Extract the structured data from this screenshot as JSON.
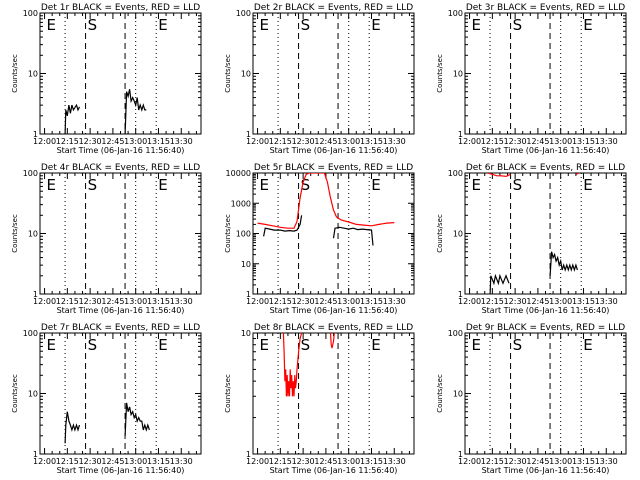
{
  "shared": {
    "xlabel": "Start Time (06-Jan-16 11:56:40)",
    "ylabel": "Counts/sec",
    "x_ticks": [
      "12:00",
      "12:15",
      "12:30",
      "12:45",
      "13:00",
      "13:15",
      "13:30"
    ],
    "colors": {
      "events": "#000000",
      "lld": "#ff0000"
    }
  },
  "chart_data": [
    {
      "type": "line",
      "title": "Det 1r BLACK = Events, RED = LLD",
      "y_scale": "log",
      "ylim": [
        1,
        100
      ],
      "y_ticks": [
        "1",
        "10",
        "100"
      ],
      "x_range_min": [
        0,
        100
      ],
      "markers": [
        {
          "label": "E",
          "x": 0
        },
        {
          "label": "S",
          "x": 27
        },
        {
          "label": "E",
          "x": 73.5
        }
      ],
      "dotted_lines": [
        13.5,
        60
      ],
      "dashed_lines": [
        27,
        53
      ],
      "series": [
        {
          "color": "#000000",
          "values": [
            [
              13.5,
              1
            ],
            [
              14,
              2.5
            ],
            [
              15,
              2
            ],
            [
              16,
              3
            ],
            [
              17,
              2.2
            ],
            [
              18,
              3
            ],
            [
              19,
              2.5
            ],
            [
              21,
              3
            ],
            [
              22,
              2.5
            ],
            [
              23,
              2.8
            ]
          ]
        },
        {
          "color": "#000000",
          "values": [
            [
              53,
              1
            ],
            [
              54,
              5
            ],
            [
              55,
              4.2
            ],
            [
              56,
              5.5
            ],
            [
              57,
              3.5
            ],
            [
              58,
              4
            ],
            [
              59,
              3.5
            ],
            [
              60,
              3
            ],
            [
              61,
              4
            ],
            [
              62,
              2.5
            ],
            [
              63,
              3
            ],
            [
              64,
              2.5
            ],
            [
              65,
              3
            ],
            [
              66,
              2.5
            ],
            [
              67,
              2.5
            ]
          ]
        }
      ]
    },
    {
      "type": "line",
      "title": "Det 2r BLACK = Events, RED = LLD",
      "y_scale": "log",
      "ylim": [
        1,
        100
      ],
      "y_ticks": [
        "1",
        "10",
        "100"
      ],
      "markers": [
        {
          "label": "E",
          "x": 0
        },
        {
          "label": "S",
          "x": 27
        },
        {
          "label": "E",
          "x": 73.5
        }
      ],
      "dotted_lines": [
        13.5,
        60
      ],
      "dashed_lines": [
        27,
        53
      ],
      "series": []
    },
    {
      "type": "line",
      "title": "Det 3r BLACK = Events, RED = LLD",
      "y_scale": "log",
      "ylim": [
        1,
        100
      ],
      "y_ticks": [
        "1",
        "10",
        "100"
      ],
      "markers": [
        {
          "label": "E",
          "x": 0
        },
        {
          "label": "S",
          "x": 27
        },
        {
          "label": "E",
          "x": 73.5
        }
      ],
      "dotted_lines": [
        13.5,
        60
      ],
      "dashed_lines": [
        27,
        53
      ],
      "series": []
    },
    {
      "type": "line",
      "title": "Det 4r BLACK = Events, RED = LLD",
      "y_scale": "log",
      "ylim": [
        1,
        100
      ],
      "y_ticks": [
        "1",
        "10",
        "100"
      ],
      "markers": [
        {
          "label": "E",
          "x": 0
        },
        {
          "label": "S",
          "x": 27
        },
        {
          "label": "E",
          "x": 73.5
        }
      ],
      "dotted_lines": [
        13.5,
        60
      ],
      "dashed_lines": [
        27,
        53
      ],
      "series": []
    },
    {
      "type": "line",
      "title": "Det 5r BLACK = Events, RED = LLD",
      "y_scale": "log",
      "ylim": [
        1,
        10000
      ],
      "y_ticks": [
        "1",
        "10",
        "100",
        "1000",
        "10000"
      ],
      "markers": [
        {
          "label": "E",
          "x": 0
        },
        {
          "label": "S",
          "x": 27
        },
        {
          "label": "E",
          "x": 73.5
        }
      ],
      "dotted_lines": [
        13.5,
        60
      ],
      "dashed_lines": [
        27,
        53
      ],
      "series": [
        {
          "color": "#ff0000",
          "values": [
            [
              0,
              220
            ],
            [
              5,
              200
            ],
            [
              10,
              180
            ],
            [
              15,
              160
            ],
            [
              20,
              150
            ],
            [
              24,
              150
            ],
            [
              26,
              250
            ],
            [
              28,
              1500
            ],
            [
              30,
              5000
            ],
            [
              32,
              9000
            ],
            [
              34,
              10000
            ],
            [
              44,
              10000
            ],
            [
              46,
              5000
            ],
            [
              48,
              1500
            ],
            [
              50,
              600
            ],
            [
              52,
              350
            ],
            [
              55,
              280
            ],
            [
              60,
              240
            ],
            [
              65,
              200
            ],
            [
              70,
              190
            ],
            [
              75,
              180
            ],
            [
              80,
              200
            ],
            [
              85,
              220
            ],
            [
              90,
              230
            ]
          ]
        },
        {
          "color": "#000000",
          "values": [
            [
              4,
              80
            ],
            [
              5,
              150
            ],
            [
              8,
              140
            ],
            [
              11,
              130
            ],
            [
              13.5,
              130
            ],
            [
              15,
              130
            ],
            [
              18,
              120
            ],
            [
              21,
              125
            ],
            [
              24,
              120
            ],
            [
              26,
              130
            ],
            [
              28,
              200
            ],
            [
              29,
              400
            ]
          ]
        },
        {
          "color": "#000000",
          "values": [
            [
              50,
              70
            ],
            [
              51,
              150
            ],
            [
              54,
              160
            ],
            [
              57,
              150
            ],
            [
              60,
              140
            ],
            [
              63,
              150
            ],
            [
              66,
              135
            ],
            [
              69,
              140
            ],
            [
              72,
              135
            ],
            [
              75,
              130
            ],
            [
              76,
              40
            ]
          ]
        }
      ]
    },
    {
      "type": "line",
      "title": "Det 6r BLACK = Events, RED = LLD",
      "y_scale": "log",
      "ylim": [
        1,
        100
      ],
      "y_ticks": [
        "1",
        "10",
        "100"
      ],
      "markers": [
        {
          "label": "E",
          "x": 0
        },
        {
          "label": "S",
          "x": 27
        },
        {
          "label": "E",
          "x": 73.5
        }
      ],
      "dotted_lines": [
        13.5,
        60
      ],
      "dashed_lines": [
        27,
        53
      ],
      "series": [
        {
          "color": "#ff0000",
          "values": [
            [
              12,
              100
            ],
            [
              15,
              95
            ],
            [
              18,
              90
            ],
            [
              21,
              90
            ],
            [
              24,
              88
            ],
            [
              27,
              95
            ]
          ]
        },
        {
          "color": "#ff0000",
          "values": [
            [
              70,
              95
            ],
            [
              72,
              100
            ]
          ]
        },
        {
          "color": "#000000",
          "values": [
            [
              13.5,
              1
            ],
            [
              14,
              2
            ],
            [
              16,
              1.5
            ],
            [
              17,
              2
            ],
            [
              19,
              1.5
            ],
            [
              20,
              2
            ],
            [
              22,
              1.5
            ],
            [
              24,
              2
            ],
            [
              26,
              1.5
            ]
          ]
        },
        {
          "color": "#000000",
          "values": [
            [
              53,
              2
            ],
            [
              54,
              5
            ],
            [
              55,
              4
            ],
            [
              56,
              4.5
            ],
            [
              57,
              3.5
            ],
            [
              58,
              4
            ],
            [
              59,
              3
            ],
            [
              60,
              3.5
            ],
            [
              61,
              2.5
            ],
            [
              62,
              3
            ],
            [
              63,
              2.5
            ],
            [
              64,
              3
            ],
            [
              65,
              2.5
            ],
            [
              66,
              3
            ],
            [
              67,
              2.5
            ],
            [
              68,
              3
            ],
            [
              69,
              2.5
            ],
            [
              70,
              3
            ],
            [
              71,
              2.5
            ]
          ]
        }
      ]
    },
    {
      "type": "line",
      "title": "Det 7r BLACK = Events, RED = LLD",
      "y_scale": "log",
      "ylim": [
        1,
        100
      ],
      "y_ticks": [
        "1",
        "10",
        "100"
      ],
      "markers": [
        {
          "label": "E",
          "x": 0
        },
        {
          "label": "S",
          "x": 27
        },
        {
          "label": "E",
          "x": 73.5
        }
      ],
      "dotted_lines": [
        13.5,
        60
      ],
      "dashed_lines": [
        27,
        53
      ],
      "series": [
        {
          "color": "#000000",
          "values": [
            [
              13.5,
              1.5
            ],
            [
              14,
              3
            ],
            [
              15,
              5
            ],
            [
              16,
              3.5
            ],
            [
              17,
              3
            ],
            [
              18,
              2.5
            ],
            [
              19,
              3
            ],
            [
              20,
              2.5
            ],
            [
              21,
              3
            ],
            [
              22,
              2.5
            ],
            [
              23,
              3
            ]
          ]
        },
        {
          "color": "#000000",
          "values": [
            [
              53,
              2
            ],
            [
              54,
              7
            ],
            [
              55,
              5
            ],
            [
              56,
              6
            ],
            [
              57,
              4.5
            ],
            [
              58,
              5
            ],
            [
              59,
              4
            ],
            [
              60,
              4.5
            ],
            [
              61,
              3.5
            ],
            [
              62,
              4
            ],
            [
              63,
              3.5
            ],
            [
              64,
              3.5
            ],
            [
              65,
              2.5
            ],
            [
              66,
              3
            ],
            [
              67,
              2.5
            ],
            [
              68,
              3
            ],
            [
              69,
              2.5
            ]
          ]
        }
      ]
    },
    {
      "type": "line",
      "title": "Det 8r BLACK = Events, RED = LLD",
      "y_scale": "log",
      "ylim": [
        1,
        10
      ],
      "y_ticks": [
        "1",
        "10"
      ],
      "markers": [
        {
          "label": "E",
          "x": 0
        },
        {
          "label": "S",
          "x": 27
        },
        {
          "label": "E",
          "x": 73.5
        }
      ],
      "dotted_lines": [
        13.5,
        60
      ],
      "dashed_lines": [
        27,
        53
      ],
      "series": [
        {
          "color": "#ff0000",
          "values": [
            [
              17,
              10
            ],
            [
              17.5,
              7
            ],
            [
              18,
              4
            ],
            [
              18.5,
              5
            ],
            [
              19,
              3
            ],
            [
              19.5,
              4.5
            ],
            [
              20,
              3
            ],
            [
              20.5,
              4
            ],
            [
              21,
              3
            ],
            [
              21.5,
              5
            ],
            [
              22,
              3.5
            ],
            [
              22.5,
              4.5
            ],
            [
              23,
              3
            ],
            [
              23.5,
              4
            ],
            [
              24,
              3
            ],
            [
              24.5,
              4.5
            ],
            [
              25,
              3.5
            ],
            [
              25.5,
              4
            ],
            [
              26,
              5
            ],
            [
              27,
              7
            ],
            [
              28,
              9
            ],
            [
              29,
              10
            ]
          ]
        },
        {
          "color": "#ff0000",
          "values": [
            [
              48,
              10
            ],
            [
              48.5,
              8
            ],
            [
              49,
              7.5
            ],
            [
              49.5,
              8
            ],
            [
              50,
              8.5
            ],
            [
              50.5,
              10
            ]
          ]
        }
      ]
    },
    {
      "type": "line",
      "title": "Det 9r BLACK = Events, RED = LLD",
      "y_scale": "log",
      "ylim": [
        1,
        100
      ],
      "y_ticks": [
        "1",
        "10",
        "100"
      ],
      "markers": [
        {
          "label": "E",
          "x": 0
        },
        {
          "label": "S",
          "x": 27
        },
        {
          "label": "E",
          "x": 73.5
        }
      ],
      "dotted_lines": [
        13.5,
        60
      ],
      "dashed_lines": [
        27,
        53
      ],
      "series": []
    }
  ]
}
